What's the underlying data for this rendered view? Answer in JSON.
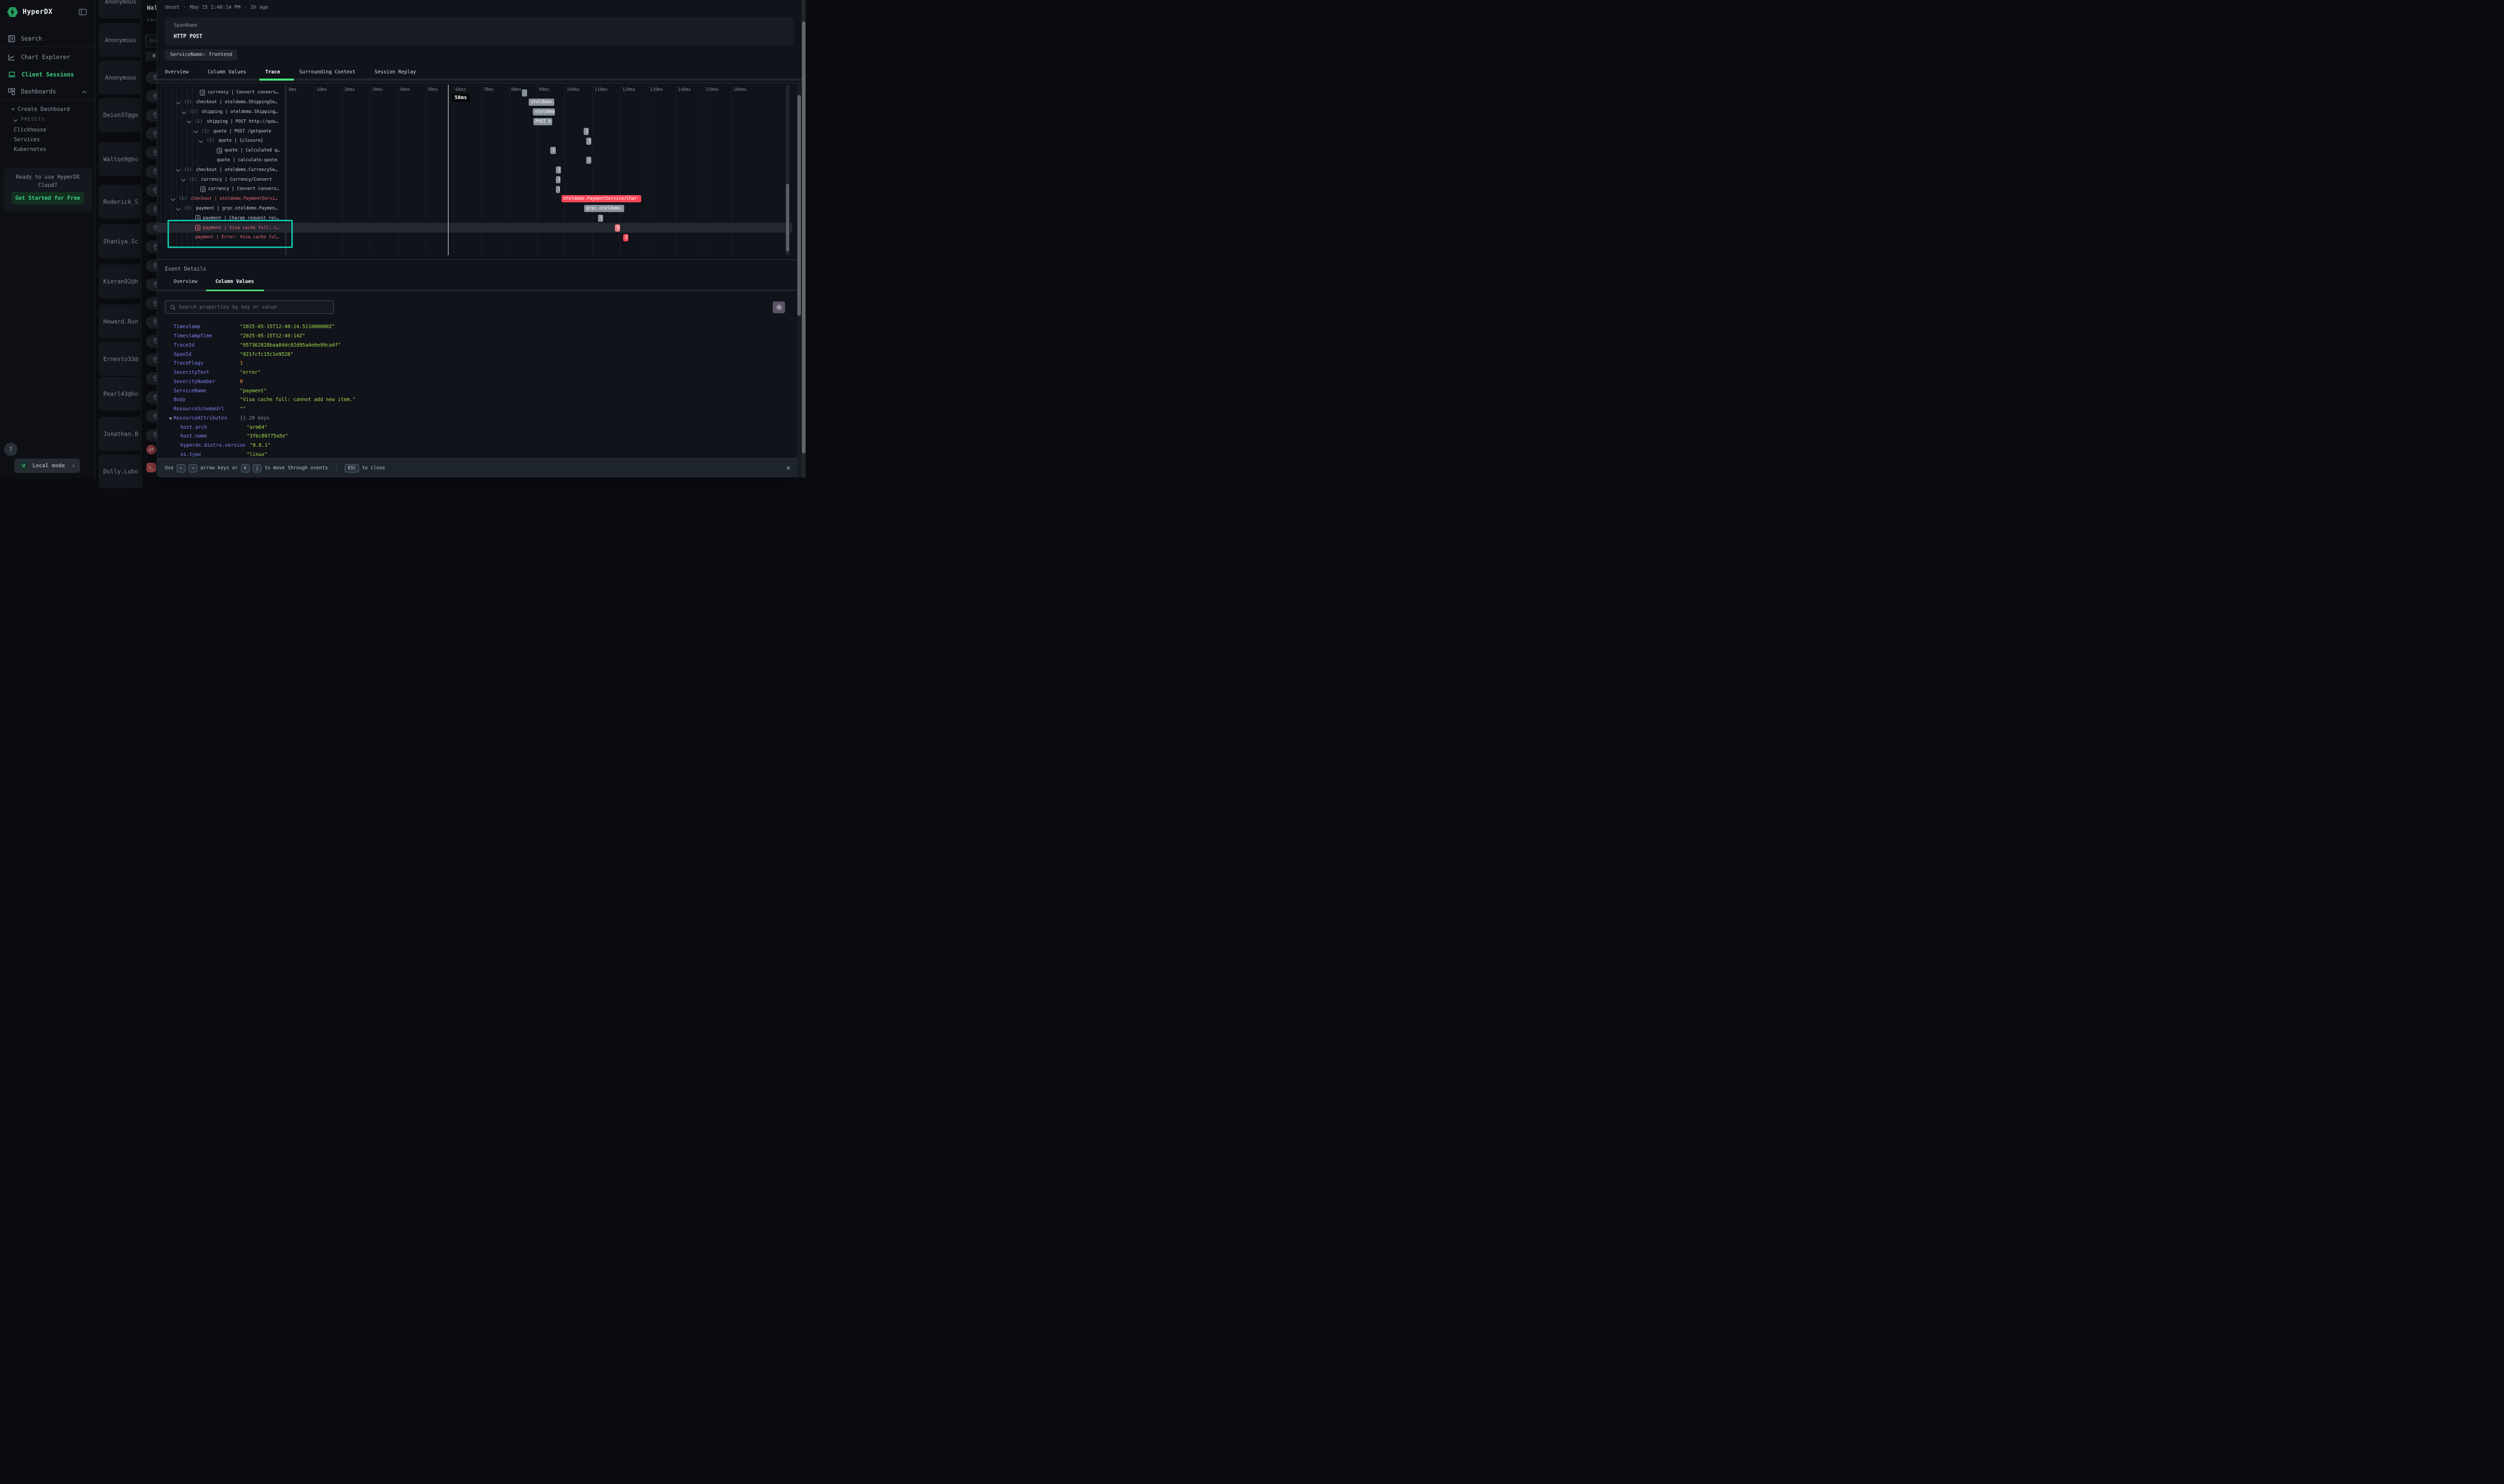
{
  "colors": {
    "accent_green": "#4be37d",
    "brand_green": "#259e5c",
    "error_red": "#fb4757",
    "bar_pink": "#f47d85",
    "teal_highlight": "#12bca4",
    "key_purple": "#7e84ef",
    "value_green": "#a8dc4d",
    "value_orange": "#f99f3e"
  },
  "app": {
    "brand": "HyperDX"
  },
  "sidebar": {
    "nav": [
      {
        "label": "Search",
        "icon": "journal-icon",
        "active": false
      },
      {
        "label": "Chart Explorer",
        "icon": "chart-icon",
        "active": false
      },
      {
        "label": "Client Sessions",
        "icon": "laptop-icon",
        "active": true
      },
      {
        "label": "Dashboards",
        "icon": "grid-icon",
        "active": false
      }
    ],
    "create_dashboard": "+ Create Dashboard",
    "presets_header": "PRESETS",
    "presets": [
      "Clickhouse",
      "Services",
      "Kubernetes"
    ],
    "cloud_card": {
      "line1": "Ready to use HyperDX",
      "line2": "Cloud?",
      "cta": "Get Started for Free"
    },
    "help": "?",
    "user": {
      "initial": "U",
      "label": "Local mode",
      "chevron": "›"
    }
  },
  "sessions": {
    "items": [
      "Anonymous",
      "Anonymous",
      "Anonymous",
      "Deion37@gm",
      "Walton9@ho",
      "Roderick_S",
      "Shaniya.Sc",
      "Kieran92@h",
      "Howard.Run",
      "Ernesto33@",
      "Pearl43@ho",
      "Jonathan.B",
      "Dolly.Lubo"
    ]
  },
  "peek": {
    "title": "Wal",
    "subtitle": "Las",
    "search_placeholder": "Sea",
    "button": "H"
  },
  "pin_strip": {
    "icon": "map-pin-icon",
    "pin_count": 20,
    "bottom_icons": [
      {
        "icon": "swap-arrows-icon",
        "glyph": "⇄"
      },
      {
        "icon": "terminal-icon",
        "glyph": ">_"
      }
    ]
  },
  "modal": {
    "breadcrumb": {
      "status": "Unset",
      "sep": "·",
      "time": "May 15 1:40:14 PM",
      "ago": "2h ago"
    },
    "span_card": {
      "label": "SpanName",
      "value": "HTTP POST"
    },
    "service_chip": "ServiceName: frontend",
    "tabs": [
      {
        "label": "Overview",
        "active": false
      },
      {
        "label": "Column Values",
        "active": false
      },
      {
        "label": "Trace",
        "active": true
      },
      {
        "label": "Surrounding Context",
        "active": false
      },
      {
        "label": "Session Replay",
        "active": false
      }
    ],
    "trace": {
      "axis_ticks": [
        "0ms",
        "10ms",
        "20ms",
        "30ms",
        "40ms",
        "50ms",
        "60ms",
        "70ms",
        "80ms",
        "90ms",
        "100ms",
        "110ms",
        "120ms",
        "130ms",
        "140ms",
        "150ms",
        "160ms"
      ],
      "marker": {
        "label": "58ms",
        "ms": 58
      },
      "rows": [
        {
          "indent": 83,
          "lead": "doc",
          "count": "",
          "label": "currency | Convert convers…",
          "error": false,
          "selected": false,
          "bar": {
            "start_ms": 84.6,
            "dur_ms": 1.9,
            "color": "gray",
            "label": ""
          }
        },
        {
          "indent": 38,
          "lead": "chev",
          "count": "(1)",
          "label": "checkout | oteldemo.ShippingSe…",
          "error": false,
          "selected": false,
          "bar": {
            "start_ms": 87.1,
            "dur_ms": 9.2,
            "color": "gray",
            "label": "oteldemo."
          }
        },
        {
          "indent": 49,
          "lead": "chev",
          "count": "(1)",
          "label": "shipping | oteldemo.Shipping…",
          "error": false,
          "selected": false,
          "bar": {
            "start_ms": 88.6,
            "dur_ms": 7.8,
            "color": "gray",
            "label": "oteldemo"
          }
        },
        {
          "indent": 59,
          "lead": "chev",
          "count": "(1)",
          "label": "shipping | POST http://quo…",
          "error": false,
          "selected": false,
          "bar": {
            "start_ms": 88.7,
            "dur_ms": 6.9,
            "color": "gray",
            "label": "POST h"
          }
        },
        {
          "indent": 72,
          "lead": "chev",
          "count": "(1)",
          "label": "quote | POST /getquote",
          "error": false,
          "selected": false,
          "bar": {
            "start_ms": 106.8,
            "dur_ms": 1.9,
            "color": "gray",
            "label": "("
          }
        },
        {
          "indent": 82,
          "lead": "chev",
          "count": "(2)",
          "label": "quote | {closure}",
          "error": false,
          "selected": false,
          "bar": {
            "start_ms": 107.8,
            "dur_ms": 1.9,
            "color": "gray",
            "label": "{"
          }
        },
        {
          "indent": 116,
          "lead": "doc",
          "count": "",
          "label": "quote | Calculated q…",
          "error": false,
          "selected": false,
          "bar": {
            "start_ms": 94.9,
            "dur_ms": 1.9,
            "color": "gray",
            "label": "("
          }
        },
        {
          "indent": 116,
          "lead": "text",
          "count": "",
          "label": "quote | calculate-quote",
          "error": false,
          "selected": false,
          "bar": {
            "start_ms": 107.8,
            "dur_ms": 1.8,
            "color": "gray",
            "label": "c"
          }
        },
        {
          "indent": 38,
          "lead": "chev",
          "count": "(1)",
          "label": "checkout | oteldemo.CurrencySe…",
          "error": false,
          "selected": false,
          "bar": {
            "start_ms": 96.9,
            "dur_ms": 1.8,
            "color": "gray",
            "label": "("
          }
        },
        {
          "indent": 48,
          "lead": "chev",
          "count": "(1)",
          "label": "currency | Currency/Convert",
          "error": false,
          "selected": false,
          "bar": {
            "start_ms": 96.9,
            "dur_ms": 1.7,
            "color": "gray",
            "label": "("
          }
        },
        {
          "indent": 84,
          "lead": "doc",
          "count": "",
          "label": "currency | Convert convers…",
          "error": false,
          "selected": false,
          "bar": {
            "start_ms": 96.9,
            "dur_ms": 1.4,
            "color": "gray",
            "label": "("
          }
        },
        {
          "indent": 28,
          "lead": "chev",
          "count": "(1)",
          "label": "checkout | oteldemo.PaymentServi…",
          "error": true,
          "selected": false,
          "bar": {
            "start_ms": 98.8,
            "dur_ms": 28.8,
            "color": "red",
            "label": "oteldemo.PaymentService/Char"
          }
        },
        {
          "indent": 38,
          "lead": "chev",
          "count": "(3)",
          "label": "payment | grpc.oteldemo.Paymen…",
          "error": false,
          "selected": false,
          "bar": {
            "start_ms": 107.0,
            "dur_ms": 14.4,
            "color": "gray",
            "label": "grpc.oteldemo."
          }
        },
        {
          "indent": 74,
          "lead": "doc",
          "count": "",
          "label": "payment | Charge request rec…",
          "error": false,
          "selected": false,
          "bar": {
            "start_ms": 112.0,
            "dur_ms": 1.8,
            "color": "gray",
            "label": "("
          }
        },
        {
          "indent": 74,
          "lead": "doc",
          "count": "",
          "label": "payment | Visa cache full: c…",
          "error": true,
          "selected": true,
          "bar": {
            "start_ms": 118.1,
            "dur_ms": 1.8,
            "color": "pink",
            "label": "V"
          }
        },
        {
          "indent": 74,
          "lead": "text",
          "count": "",
          "label": "payment | Error: Visa cache ful…",
          "error": true,
          "selected": false,
          "bar": {
            "start_ms": 121.1,
            "dur_ms": 1.9,
            "color": "red",
            "label": "E"
          }
        }
      ]
    },
    "event_details": {
      "title": "Event Details",
      "tabs": [
        {
          "label": "Overview",
          "active": false
        },
        {
          "label": "Column Values",
          "active": true
        }
      ],
      "search_placeholder": "Search properties by key or value",
      "properties": [
        {
          "key": "Timestamp",
          "value": "\"2025-05-15T12:40:14.511000000Z\"",
          "type": "string",
          "indent": 0,
          "caret": false
        },
        {
          "key": "TimestampTime",
          "value": "\"2025-05-15T12:40:14Z\"",
          "type": "string",
          "indent": 0,
          "caret": false
        },
        {
          "key": "TraceId",
          "value": "\"957362828baa84dc02d95a4e6e99ca4f\"",
          "type": "string",
          "indent": 0,
          "caret": false
        },
        {
          "key": "SpanId",
          "value": "\"021fcfc15c1e9528\"",
          "type": "string",
          "indent": 0,
          "caret": false
        },
        {
          "key": "TraceFlags",
          "value": "1",
          "type": "number",
          "indent": 0,
          "caret": false
        },
        {
          "key": "SeverityText",
          "value": "\"error\"",
          "type": "string",
          "indent": 0,
          "caret": false
        },
        {
          "key": "SeverityNumber",
          "value": "0",
          "type": "number",
          "indent": 0,
          "caret": false
        },
        {
          "key": "ServiceName",
          "value": "\"payment\"",
          "type": "string",
          "indent": 0,
          "caret": false
        },
        {
          "key": "Body",
          "value": "\"Visa cache full: cannot add new item.\"",
          "type": "string",
          "indent": 0,
          "caret": false
        },
        {
          "key": "ResourceSchemaUrl",
          "value": "\"\"",
          "type": "string",
          "indent": 0,
          "caret": false
        },
        {
          "key": "ResourceAttributes",
          "value": "{} 20 keys",
          "type": "meta",
          "indent": 0,
          "caret": true
        },
        {
          "key": "host.arch",
          "value": "\"arm64\"",
          "type": "string",
          "indent": 1,
          "caret": false
        },
        {
          "key": "host.name",
          "value": "\"3fbc80775a5e\"",
          "type": "string",
          "indent": 1,
          "caret": false
        },
        {
          "key": "hyperdx.distro.version",
          "value": "\"0.8.1\"",
          "type": "string",
          "indent": 1,
          "caret": false
        },
        {
          "key": "os.type",
          "value": "\"linux\"",
          "type": "string",
          "indent": 1,
          "caret": false
        }
      ]
    },
    "footer": {
      "use": "Use",
      "key_left": "←",
      "key_right": "→",
      "arrow_text": "arrow keys or",
      "key_k": "k",
      "key_j": "j",
      "move_text": "to move through events",
      "key_esc": "ESC",
      "close_text": "to close",
      "close_icon": "×"
    }
  }
}
